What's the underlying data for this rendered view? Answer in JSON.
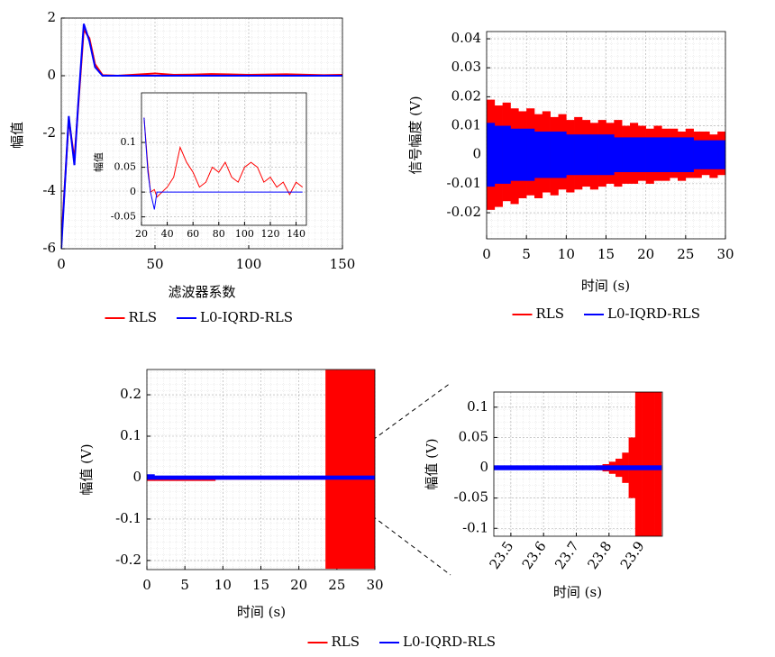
{
  "chart_data": [
    {
      "type": "line",
      "xlabel": "滤波器系数",
      "ylabel": "幅值",
      "x": [
        0,
        4,
        7,
        9,
        12,
        15,
        18,
        22,
        30,
        50,
        60,
        70,
        80,
        100,
        120,
        140,
        150
      ],
      "series": [
        {
          "name": "RLS",
          "color": "#ff0000",
          "values": [
            -5.8,
            -1.5,
            -2.9,
            -1.1,
            1.6,
            1.3,
            0.4,
            0.02,
            0,
            0.08,
            0.03,
            0.04,
            0.06,
            0.03,
            0.05,
            0.02,
            0.03
          ]
        },
        {
          "name": "L0-IQRD-RLS",
          "color": "#0000ff",
          "values": [
            -6,
            -1.4,
            -3.1,
            -1,
            1.8,
            1.2,
            0.3,
            0,
            0,
            0,
            0,
            0,
            0,
            0,
            0,
            0,
            0
          ]
        }
      ],
      "xlim": [
        0,
        150
      ],
      "xticks": [
        0,
        50,
        100,
        150
      ],
      "ylim": [
        -6,
        2
      ],
      "yticks": [
        -6,
        -4,
        -2,
        0,
        2
      ],
      "grid": true,
      "inset": {
        "type": "line",
        "ylabel": "幅值",
        "x": [
          22,
          25,
          27,
          30,
          32,
          40,
          45,
          50,
          55,
          60,
          65,
          70,
          75,
          80,
          85,
          90,
          95,
          100,
          105,
          110,
          115,
          120,
          125,
          130,
          135,
          140,
          145
        ],
        "series": [
          {
            "color": "#ff0000",
            "values": [
              0.15,
              0.05,
              0,
              0.005,
              -0.01,
              0.01,
              0.03,
              0.09,
              0.06,
              0.04,
              0.01,
              0.02,
              0.05,
              0.04,
              0.06,
              0.03,
              0.02,
              0.05,
              0.06,
              0.05,
              0.02,
              0.03,
              0.01,
              0.02,
              -0.005,
              0.02,
              0.01
            ]
          },
          {
            "color": "#0000ff",
            "values": [
              0.15,
              0.04,
              0,
              -0.035,
              0,
              0,
              0,
              0,
              0,
              0,
              0,
              0,
              0,
              0,
              0,
              0,
              0,
              0,
              0,
              0,
              0,
              0,
              0,
              0,
              0,
              0,
              0
            ]
          }
        ],
        "xlim": [
          20,
          148
        ],
        "xticks": [
          20,
          40,
          60,
          80,
          100,
          120,
          140
        ],
        "ylim": [
          -0.067,
          0.2
        ],
        "yticks": [
          -0.05,
          0,
          0.05,
          0.1
        ],
        "grid": true
      }
    },
    {
      "type": "band",
      "xlabel": "时间 (s)",
      "ylabel": "信号幅度 (V)",
      "bins": [
        0,
        1,
        2,
        3,
        4,
        5,
        6,
        7,
        8,
        9,
        10,
        11,
        12,
        13,
        14,
        15,
        16,
        17,
        18,
        19,
        20,
        21,
        22,
        23,
        24,
        25,
        26,
        27,
        28,
        29,
        30
      ],
      "series": [
        {
          "name": "RLS",
          "color": "#ff0000",
          "upper": [
            0.019,
            0.017,
            0.018,
            0.016,
            0.015,
            0.016,
            0.014,
            0.015,
            0.013,
            0.014,
            0.012,
            0.013,
            0.012,
            0.011,
            0.012,
            0.011,
            0.012,
            0.01,
            0.011,
            0.01,
            0.009,
            0.01,
            0.009,
            0.009,
            0.008,
            0.009,
            0.008,
            0.008,
            0.007,
            0.008
          ],
          "lower": [
            -0.019,
            -0.018,
            -0.016,
            -0.017,
            -0.015,
            -0.014,
            -0.015,
            -0.013,
            -0.014,
            -0.012,
            -0.013,
            -0.012,
            -0.011,
            -0.012,
            -0.011,
            -0.01,
            -0.011,
            -0.01,
            -0.01,
            -0.009,
            -0.01,
            -0.009,
            -0.009,
            -0.008,
            -0.009,
            -0.008,
            -0.008,
            -0.007,
            -0.008,
            -0.007
          ]
        },
        {
          "name": "L0-IQRD-RLS",
          "color": "#0000ff",
          "upper": [
            0.011,
            0.01,
            0.01,
            0.009,
            0.009,
            0.009,
            0.008,
            0.008,
            0.008,
            0.008,
            0.007,
            0.007,
            0.007,
            0.007,
            0.007,
            0.007,
            0.006,
            0.006,
            0.006,
            0.006,
            0.006,
            0.006,
            0.006,
            0.006,
            0.006,
            0.006,
            0.005,
            0.005,
            0.005,
            0.005
          ],
          "lower": [
            -0.011,
            -0.01,
            -0.01,
            -0.009,
            -0.009,
            -0.009,
            -0.008,
            -0.008,
            -0.008,
            -0.008,
            -0.007,
            -0.007,
            -0.007,
            -0.007,
            -0.007,
            -0.007,
            -0.006,
            -0.006,
            -0.006,
            -0.006,
            -0.006,
            -0.006,
            -0.006,
            -0.006,
            -0.006,
            -0.006,
            -0.005,
            -0.005,
            -0.005,
            -0.005
          ]
        }
      ],
      "xlim": [
        0,
        30
      ],
      "xticks": [
        0,
        5,
        10,
        15,
        20,
        25,
        30
      ],
      "ylim": [
        -0.029,
        0.0425
      ],
      "yticks": [
        -0.02,
        -0.01,
        0,
        0.01,
        0.02,
        0.03,
        0.04
      ],
      "grid": true
    },
    {
      "type": "band",
      "xlabel": "时间 (s)",
      "ylabel": "幅值 (V)",
      "bins": [
        0,
        1,
        2,
        3,
        4,
        5,
        6,
        7,
        8,
        9,
        10,
        11,
        12,
        13,
        14,
        15,
        16,
        17,
        18,
        19,
        20,
        21,
        22,
        23,
        23.5,
        30
      ],
      "series": [
        {
          "name": "RLS",
          "color": "#ff0000",
          "upper": [
            0.002,
            0.002,
            0.002,
            0.002,
            0.002,
            0.002,
            0.002,
            0.002,
            0.002,
            0.002,
            0.002,
            0.002,
            0.002,
            0.002,
            0.002,
            0.002,
            0.002,
            0.002,
            0.002,
            0.002,
            0.002,
            0.002,
            0.002,
            0.004,
            0.26
          ],
          "lower": [
            -0.008,
            -0.008,
            -0.008,
            -0.008,
            -0.008,
            -0.008,
            -0.008,
            -0.008,
            -0.008,
            -0.005,
            -0.005,
            -0.005,
            -0.005,
            -0.005,
            -0.005,
            -0.005,
            -0.005,
            -0.005,
            -0.005,
            -0.005,
            -0.005,
            -0.005,
            -0.005,
            -0.005,
            -0.22
          ]
        },
        {
          "name": "L0-IQRD-RLS",
          "color": "#0000ff",
          "upper": [
            0.008,
            0.005,
            0.005,
            0.005,
            0.005,
            0.005,
            0.005,
            0.005,
            0.005,
            0.005,
            0.005,
            0.005,
            0.005,
            0.005,
            0.005,
            0.005,
            0.005,
            0.005,
            0.005,
            0.005,
            0.005,
            0.005,
            0.005,
            0.005,
            0.005
          ],
          "lower": [
            -0.005,
            -0.005,
            -0.005,
            -0.005,
            -0.005,
            -0.005,
            -0.005,
            -0.005,
            -0.005,
            -0.005,
            -0.005,
            -0.005,
            -0.005,
            -0.005,
            -0.005,
            -0.005,
            -0.005,
            -0.005,
            -0.005,
            -0.005,
            -0.005,
            -0.005,
            -0.005,
            -0.005,
            -0.005
          ]
        }
      ],
      "xlim": [
        0,
        30
      ],
      "xticks": [
        0,
        5,
        10,
        15,
        20,
        25,
        30
      ],
      "ylim": [
        -0.222,
        0.261
      ],
      "yticks": [
        -0.2,
        -0.1,
        0,
        0.1,
        0.2
      ],
      "grid": true
    },
    {
      "type": "band",
      "xlabel": "时间 (s)",
      "ylabel": "幅值 (V)",
      "bins": [
        23.44,
        23.46,
        23.48,
        23.5,
        23.52,
        23.54,
        23.56,
        23.58,
        23.6,
        23.62,
        23.64,
        23.66,
        23.68,
        23.7,
        23.72,
        23.74,
        23.76,
        23.78,
        23.8,
        23.82,
        23.84,
        23.86,
        23.88,
        23.9,
        23.92,
        23.94,
        23.96
      ],
      "series": [
        {
          "color": "#ff0000",
          "upper": [
            0.003,
            0.003,
            0.003,
            0.003,
            0.003,
            0.003,
            0.003,
            0.003,
            0.003,
            0.003,
            0.003,
            0.003,
            0.003,
            0.003,
            0.003,
            0.003,
            0.004,
            0.006,
            0.01,
            0.015,
            0.025,
            0.05,
            0.125,
            0.125,
            0.125,
            0.125
          ],
          "lower": [
            -0.003,
            -0.003,
            -0.003,
            -0.003,
            -0.003,
            -0.003,
            -0.003,
            -0.003,
            -0.003,
            -0.003,
            -0.003,
            -0.003,
            -0.003,
            -0.003,
            -0.003,
            -0.003,
            -0.004,
            -0.006,
            -0.01,
            -0.015,
            -0.025,
            -0.05,
            -0.125,
            -0.125,
            -0.125,
            -0.125
          ]
        },
        {
          "color": "#0000ff",
          "upper": [
            0.004,
            0.004,
            0.004,
            0.004,
            0.004,
            0.004,
            0.004,
            0.004,
            0.004,
            0.004,
            0.004,
            0.004,
            0.004,
            0.004,
            0.004,
            0.004,
            0.004,
            0.004,
            0.004,
            0.004,
            0.004,
            0.004,
            0.004,
            0.004,
            0.004,
            0.004
          ],
          "lower": [
            -0.004,
            -0.004,
            -0.004,
            -0.004,
            -0.004,
            -0.004,
            -0.004,
            -0.004,
            -0.004,
            -0.004,
            -0.004,
            -0.004,
            -0.004,
            -0.004,
            -0.004,
            -0.004,
            -0.004,
            -0.004,
            -0.004,
            -0.004,
            -0.004,
            -0.004,
            -0.004,
            -0.004,
            -0.004,
            -0.004
          ]
        }
      ],
      "xlim": [
        23.448,
        23.963
      ],
      "xticks": [
        23.5,
        23.6,
        23.7,
        23.8,
        23.9
      ],
      "ylim": [
        -0.113,
        0.125
      ],
      "yticks": [
        -0.1,
        -0.05,
        0,
        0.05,
        0.1
      ],
      "grid": true
    }
  ]
}
